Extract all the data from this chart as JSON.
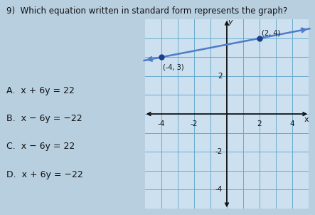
{
  "title_num": "9)",
  "title_text": "Which equation written in standard form represents the graph?",
  "choices": [
    "A.  x + 6y = 22",
    "B.  x − 6y = −22",
    "C.  x − 6y = 22",
    "D.  x + 6y = −22"
  ],
  "point1": [
    -4,
    3
  ],
  "point2": [
    2,
    4
  ],
  "line_color": "#4f7bc8",
  "point_color": "#1a3f8f",
  "bg_color": "#b8cfe0",
  "graph_bg": "#cce0f0",
  "grid_color": "#6aabcc",
  "axis_color": "#111111",
  "xlim": [
    -5,
    5
  ],
  "ylim": [
    -5,
    5
  ],
  "xticks": [
    -4,
    -2,
    2,
    4
  ],
  "yticks": [
    -4,
    -2,
    2
  ],
  "xlabel": "x",
  "ylabel": "y",
  "text_color": "#111111",
  "title_fontsize": 8.5,
  "choice_fontsize": 9
}
